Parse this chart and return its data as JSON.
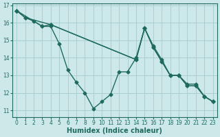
{
  "bg_color": "#cce8e8",
  "grid_color": "#aacece",
  "line_color": "#1e6b5e",
  "markersize": 2.5,
  "linewidth": 1.0,
  "xlabel": "Humidex (Indice chaleur)",
  "xlabel_fontsize": 7,
  "tick_fontsize": 5.5,
  "xlim": [
    -0.5,
    23.5
  ],
  "ylim": [
    10.6,
    17.1
  ],
  "yticks": [
    11,
    12,
    13,
    14,
    15,
    16,
    17
  ],
  "xticks": [
    0,
    1,
    2,
    3,
    4,
    5,
    6,
    7,
    8,
    9,
    10,
    11,
    12,
    13,
    14,
    15,
    16,
    17,
    18,
    19,
    20,
    21,
    22,
    23
  ],
  "line1_x": [
    0,
    1,
    2,
    3,
    4,
    5,
    6,
    7,
    8,
    9,
    10,
    11,
    12,
    13,
    14,
    15,
    16,
    17,
    18,
    19,
    20,
    21,
    22,
    23
  ],
  "line1_y": [
    16.7,
    16.3,
    16.1,
    15.8,
    15.8,
    14.8,
    13.3,
    12.6,
    12.0,
    11.1,
    11.5,
    11.9,
    13.2,
    13.2,
    14.0,
    15.7,
    14.7,
    13.9,
    13.0,
    13.0,
    12.5,
    12.5,
    11.8,
    11.5
  ],
  "line2_x": [
    0,
    3,
    4,
    14,
    15,
    16,
    17,
    18,
    19,
    20,
    21,
    22,
    23
  ],
  "line2_y": [
    16.7,
    15.8,
    15.9,
    13.9,
    15.7,
    14.6,
    13.8,
    13.0,
    13.0,
    12.4,
    12.4,
    11.8,
    11.5
  ],
  "line3_x": [
    0,
    1,
    4,
    14,
    15,
    16,
    17,
    18,
    19,
    20,
    21,
    22,
    23
  ],
  "line3_y": [
    16.7,
    16.3,
    15.9,
    13.9,
    15.7,
    14.6,
    13.8,
    13.0,
    13.0,
    12.4,
    12.4,
    11.8,
    11.5
  ]
}
